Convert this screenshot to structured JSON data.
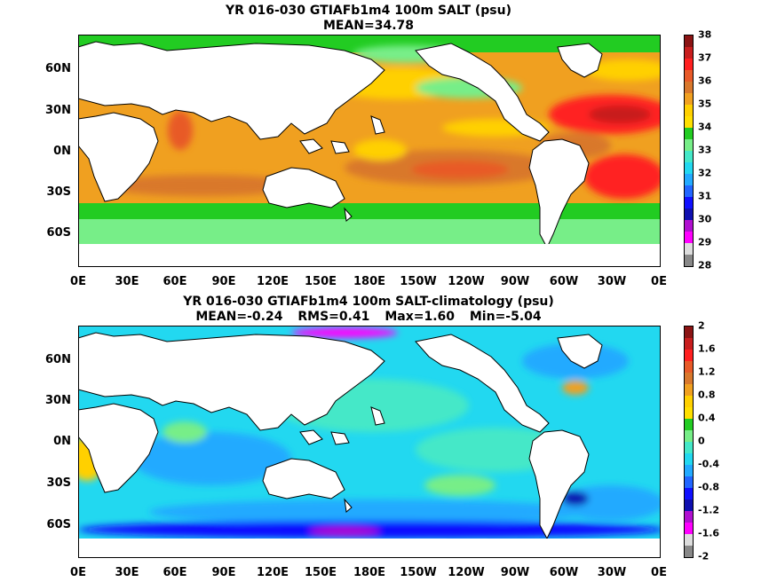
{
  "top": {
    "title": "YR 016-030 GTIAFb1m4 100m SALT (psu)",
    "stats": {
      "mean": "MEAN=34.78"
    },
    "lat_labels": [
      "60N",
      "30N",
      "0N",
      "30S",
      "60S"
    ],
    "lon_labels": [
      "0E",
      "30E",
      "60E",
      "90E",
      "120E",
      "150E",
      "180E",
      "150W",
      "120W",
      "90W",
      "60W",
      "30W",
      "0E"
    ],
    "colorbar": {
      "labels": [
        "38",
        "37",
        "36",
        "35",
        "34",
        "33",
        "32",
        "31",
        "30",
        "29",
        "28"
      ],
      "colors": [
        "#8b1414",
        "#c81e1e",
        "#ff2020",
        "#e85a28",
        "#d9782c",
        "#f0a020",
        "#ffd000",
        "#ffe000",
        "#22cc22",
        "#77ee88",
        "#44e8c8",
        "#22d8f0",
        "#22aaff",
        "#2266ff",
        "#1010ff",
        "#1010b0",
        "#b010d0",
        "#ff00ff",
        "#dddddd",
        "#888888"
      ]
    }
  },
  "bottom": {
    "title": "YR 016-030 GTIAFb1m4 100m SALT-climatology (psu)",
    "stats": {
      "mean": "MEAN=-0.24",
      "rms": "RMS=0.41",
      "max": "Max=1.60",
      "min": "Min=-5.04"
    },
    "lat_labels": [
      "60N",
      "30N",
      "0N",
      "30S",
      "60S"
    ],
    "lon_labels": [
      "0E",
      "30E",
      "60E",
      "90E",
      "120E",
      "150E",
      "180E",
      "150W",
      "120W",
      "90W",
      "60W",
      "30W",
      "0E"
    ],
    "colorbar": {
      "labels": [
        "2",
        "1.6",
        "1.2",
        "0.8",
        "0.4",
        "0",
        "-0.4",
        "-0.8",
        "-1.2",
        "-1.6",
        "-2"
      ],
      "colors": [
        "#8b1414",
        "#c81e1e",
        "#ff2020",
        "#e85a28",
        "#d9782c",
        "#f0a020",
        "#ffd000",
        "#ffe000",
        "#22cc22",
        "#77ee88",
        "#44e8c8",
        "#22d8f0",
        "#22aaff",
        "#2266ff",
        "#1010ff",
        "#1010b0",
        "#b010d0",
        "#ff00ff",
        "#dddddd",
        "#888888"
      ]
    }
  }
}
